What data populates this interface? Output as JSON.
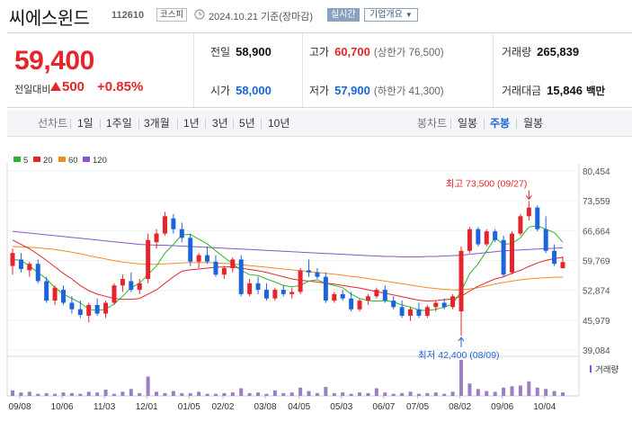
{
  "header": {
    "name": "씨에스윈드",
    "code": "112610",
    "market": "코스피",
    "date": "2024.10.21",
    "date_note": "기준(장마감)",
    "realtime": "실시간",
    "overview": "기업개요"
  },
  "quote": {
    "price": "59,400",
    "change_label": "전일대비",
    "change": "500",
    "change_pct": "+0.85%",
    "prev_close_label": "전일",
    "prev_close": "58,900",
    "open_label": "시가",
    "open": "58,000",
    "high_label": "고가",
    "high": "60,700",
    "upper_limit": "(상한가 76,500)",
    "low_label": "저가",
    "low": "57,900",
    "lower_limit": "(하한가 41,300)",
    "volume_label": "거래량",
    "volume": "265,839",
    "amount_label": "거래대금",
    "amount": "15,846",
    "amount_unit": "백만"
  },
  "period_tabs": {
    "label": "선차트",
    "items": [
      "1일",
      "1주일",
      "3개월",
      "1년",
      "3년",
      "5년",
      "10년"
    ],
    "candle_label": "봉차트",
    "candle_items": [
      "일봉",
      "주봉",
      "월봉"
    ],
    "candle_active": 1
  },
  "chart_data": {
    "type": "candlestick",
    "legend": [
      {
        "name": "5",
        "color": "#2ab52a"
      },
      {
        "name": "20",
        "color": "#e4262c"
      },
      {
        "name": "60",
        "color": "#f08c1e"
      },
      {
        "name": "120",
        "color": "#8b55c9"
      }
    ],
    "y_ticks": [
      80454,
      73559,
      66664,
      59769,
      52874,
      45979,
      39084
    ],
    "y_tick_labels": [
      "80,454",
      "73,559",
      "66,664",
      "59,769",
      "52,874",
      "45,979",
      "39,084"
    ],
    "x_labels": [
      "09/08",
      "10/06",
      "11/03",
      "12/01",
      "01/05",
      "02/02",
      "03/08",
      "04/05",
      "05/03",
      "06/07",
      "07/05",
      "08/02",
      "09/06",
      "10/04"
    ],
    "ylim": [
      39084,
      80454
    ],
    "max_annotation": "최고 73,500 (09/27)",
    "max_value": 73500,
    "min_annotation": "최저 42,400 (08/09)",
    "min_value": 42400,
    "volume_label": "거래량",
    "candles": [
      {
        "o": 58500,
        "h": 62500,
        "l": 56500,
        "c": 61500
      },
      {
        "o": 60000,
        "h": 61500,
        "l": 57000,
        "c": 57800
      },
      {
        "o": 57500,
        "h": 59500,
        "l": 56000,
        "c": 59000
      },
      {
        "o": 59000,
        "h": 60000,
        "l": 54500,
        "c": 55000
      },
      {
        "o": 55000,
        "h": 56000,
        "l": 50000,
        "c": 50500
      },
      {
        "o": 50500,
        "h": 54000,
        "l": 49500,
        "c": 53500
      },
      {
        "o": 53000,
        "h": 54000,
        "l": 49500,
        "c": 50000
      },
      {
        "o": 50000,
        "h": 51500,
        "l": 47500,
        "c": 48500
      },
      {
        "o": 48500,
        "h": 50500,
        "l": 46500,
        "c": 47200
      },
      {
        "o": 47000,
        "h": 50000,
        "l": 45500,
        "c": 49500
      },
      {
        "o": 49500,
        "h": 51000,
        "l": 47000,
        "c": 47500
      },
      {
        "o": 47500,
        "h": 50500,
        "l": 46500,
        "c": 50000
      },
      {
        "o": 50000,
        "h": 54500,
        "l": 49500,
        "c": 54000
      },
      {
        "o": 54000,
        "h": 56500,
        "l": 52500,
        "c": 55500
      },
      {
        "o": 55000,
        "h": 57000,
        "l": 52500,
        "c": 53000
      },
      {
        "o": 53000,
        "h": 55500,
        "l": 52000,
        "c": 54500
      },
      {
        "o": 55500,
        "h": 66000,
        "l": 54500,
        "c": 64500
      },
      {
        "o": 64000,
        "h": 67000,
        "l": 62500,
        "c": 66000
      },
      {
        "o": 66000,
        "h": 71000,
        "l": 65500,
        "c": 70000
      },
      {
        "o": 69500,
        "h": 70500,
        "l": 66000,
        "c": 67000
      },
      {
        "o": 67000,
        "h": 68500,
        "l": 64000,
        "c": 65000
      },
      {
        "o": 65000,
        "h": 66000,
        "l": 58500,
        "c": 59500
      },
      {
        "o": 59500,
        "h": 61500,
        "l": 58000,
        "c": 61000
      },
      {
        "o": 61000,
        "h": 63000,
        "l": 59000,
        "c": 59500
      },
      {
        "o": 59500,
        "h": 61000,
        "l": 56000,
        "c": 56500
      },
      {
        "o": 56500,
        "h": 58500,
        "l": 55500,
        "c": 58000
      },
      {
        "o": 58000,
        "h": 60500,
        "l": 57000,
        "c": 60000
      },
      {
        "o": 60000,
        "h": 61000,
        "l": 51500,
        "c": 52000
      },
      {
        "o": 52000,
        "h": 55500,
        "l": 51500,
        "c": 54500
      },
      {
        "o": 54500,
        "h": 56000,
        "l": 52000,
        "c": 53000
      },
      {
        "o": 53000,
        "h": 54500,
        "l": 50500,
        "c": 51000
      },
      {
        "o": 51000,
        "h": 53500,
        "l": 50500,
        "c": 53000
      },
      {
        "o": 53000,
        "h": 54000,
        "l": 51500,
        "c": 52000
      },
      {
        "o": 52000,
        "h": 53500,
        "l": 51000,
        "c": 52500
      },
      {
        "o": 52500,
        "h": 58000,
        "l": 52000,
        "c": 57500
      },
      {
        "o": 57500,
        "h": 60000,
        "l": 56000,
        "c": 57000
      },
      {
        "o": 57000,
        "h": 58000,
        "l": 55500,
        "c": 56000
      },
      {
        "o": 56000,
        "h": 57000,
        "l": 50000,
        "c": 50500
      },
      {
        "o": 50500,
        "h": 52500,
        "l": 50000,
        "c": 52000
      },
      {
        "o": 52000,
        "h": 53000,
        "l": 50500,
        "c": 51000
      },
      {
        "o": 51000,
        "h": 52500,
        "l": 48000,
        "c": 48500
      },
      {
        "o": 48500,
        "h": 51000,
        "l": 48000,
        "c": 50500
      },
      {
        "o": 50500,
        "h": 52000,
        "l": 49500,
        "c": 51500
      },
      {
        "o": 51500,
        "h": 53500,
        "l": 51000,
        "c": 53000
      },
      {
        "o": 53000,
        "h": 54000,
        "l": 50000,
        "c": 50500
      },
      {
        "o": 50500,
        "h": 51500,
        "l": 48500,
        "c": 49000
      },
      {
        "o": 49000,
        "h": 50500,
        "l": 46500,
        "c": 47000
      },
      {
        "o": 47000,
        "h": 49000,
        "l": 45800,
        "c": 48500
      },
      {
        "o": 48500,
        "h": 50000,
        "l": 46500,
        "c": 47000
      },
      {
        "o": 47000,
        "h": 49500,
        "l": 46500,
        "c": 49000
      },
      {
        "o": 49000,
        "h": 50500,
        "l": 48000,
        "c": 50000
      },
      {
        "o": 50000,
        "h": 51000,
        "l": 48500,
        "c": 49000
      },
      {
        "o": 49000,
        "h": 52000,
        "l": 48500,
        "c": 51500
      },
      {
        "o": 48000,
        "h": 63000,
        "l": 42400,
        "c": 62000
      },
      {
        "o": 62000,
        "h": 67500,
        "l": 61500,
        "c": 67000
      },
      {
        "o": 67000,
        "h": 67500,
        "l": 63000,
        "c": 63500
      },
      {
        "o": 63500,
        "h": 67000,
        "l": 63000,
        "c": 66500
      },
      {
        "o": 66500,
        "h": 67000,
        "l": 64000,
        "c": 64500
      },
      {
        "o": 64500,
        "h": 65500,
        "l": 56000,
        "c": 56500
      },
      {
        "o": 57000,
        "h": 66500,
        "l": 56500,
        "c": 66000
      },
      {
        "o": 66000,
        "h": 70500,
        "l": 65500,
        "c": 70000
      },
      {
        "o": 70000,
        "h": 73500,
        "l": 69000,
        "c": 72000
      },
      {
        "o": 72000,
        "h": 72500,
        "l": 66500,
        "c": 67000
      },
      {
        "o": 67000,
        "h": 70000,
        "l": 61500,
        "c": 62000
      },
      {
        "o": 62000,
        "h": 63500,
        "l": 58500,
        "c": 59000
      },
      {
        "o": 58000,
        "h": 60700,
        "l": 57900,
        "c": 59400
      }
    ],
    "ma5": [
      60000,
      59800,
      58500,
      57000,
      55500,
      53500,
      52000,
      51000,
      50000,
      48500,
      48200,
      48500,
      49700,
      51500,
      53500,
      54500,
      56500,
      58500,
      61500,
      63500,
      65700,
      65800,
      64700,
      63600,
      62000,
      60500,
      59000,
      57500,
      56500,
      56300,
      55500,
      54800,
      54000,
      53700,
      54000,
      55000,
      55300,
      54500,
      54000,
      53500,
      52000,
      51000,
      50500,
      50400,
      50500,
      50200,
      49500,
      49000,
      48300,
      48200,
      48500,
      49000,
      49700,
      52700,
      56700,
      59000,
      62000,
      65000,
      63500,
      63700,
      65000,
      67500,
      67800,
      67000,
      66200,
      64000
    ],
    "ma20": [
      64500,
      63500,
      62500,
      61200,
      59800,
      58300,
      56800,
      55500,
      54000,
      52800,
      52000,
      51500,
      51000,
      50800,
      50800,
      51000,
      52000,
      53000,
      54500,
      56000,
      57300,
      57600,
      57800,
      58000,
      58200,
      58300,
      58300,
      58000,
      57700,
      57400,
      57000,
      56500,
      56000,
      55500,
      55200,
      55000,
      54800,
      54500,
      54300,
      54000,
      53700,
      53400,
      53000,
      52600,
      52200,
      51800,
      51400,
      51000,
      50600,
      50400,
      50500,
      50700,
      50900,
      51500,
      52700,
      53800,
      54700,
      55500,
      56000,
      56800,
      57500,
      58400,
      59200,
      59800,
      60200,
      60500
    ],
    "ma60": [
      63000,
      62900,
      62800,
      62700,
      62500,
      62300,
      62000,
      61700,
      61300,
      60900,
      60500,
      60100,
      59700,
      59400,
      59200,
      59000,
      58900,
      58900,
      59000,
      59100,
      59200,
      59300,
      59300,
      59300,
      59200,
      59100,
      59000,
      58800,
      58600,
      58400,
      58200,
      58000,
      57800,
      57600,
      57400,
      57200,
      57000,
      56800,
      56600,
      56400,
      56100,
      55900,
      55600,
      55300,
      55000,
      54700,
      54400,
      54100,
      53800,
      53500,
      53300,
      53100,
      53000,
      53000,
      53200,
      53500,
      53900,
      54300,
      54700,
      55000,
      55300,
      55500,
      55700,
      55800,
      55900,
      55900
    ],
    "ma120": [
      66500,
      66300,
      66100,
      65900,
      65700,
      65500,
      65300,
      65100,
      64900,
      64700,
      64500,
      64300,
      64100,
      63900,
      63700,
      63500,
      63400,
      63300,
      63300,
      63200,
      63100,
      63000,
      62900,
      62800,
      62700,
      62600,
      62500,
      62400,
      62300,
      62200,
      62100,
      62000,
      61900,
      61800,
      61700,
      61600,
      61500,
      61400,
      61300,
      61200,
      61100,
      61000,
      60900,
      60800,
      60700,
      60700,
      60600,
      60600,
      60600,
      60700,
      60700,
      60800,
      60900,
      61000,
      61200,
      61400,
      61600,
      61800,
      62000,
      62100,
      62200,
      62300,
      62400,
      62500,
      62600,
      62700
    ],
    "volume": [
      8,
      5,
      6,
      3,
      4,
      3,
      5,
      4,
      3,
      6,
      5,
      9,
      3,
      6,
      10,
      4,
      28,
      6,
      4,
      7,
      4,
      4,
      6,
      3,
      3,
      4,
      5,
      11,
      4,
      5,
      3,
      8,
      4,
      5,
      12,
      7,
      4,
      13,
      4,
      5,
      3,
      5,
      4,
      11,
      5,
      3,
      4,
      6,
      3,
      4,
      5,
      3,
      6,
      52,
      18,
      10,
      7,
      6,
      12,
      14,
      15,
      21,
      12,
      10,
      7,
      5
    ]
  }
}
